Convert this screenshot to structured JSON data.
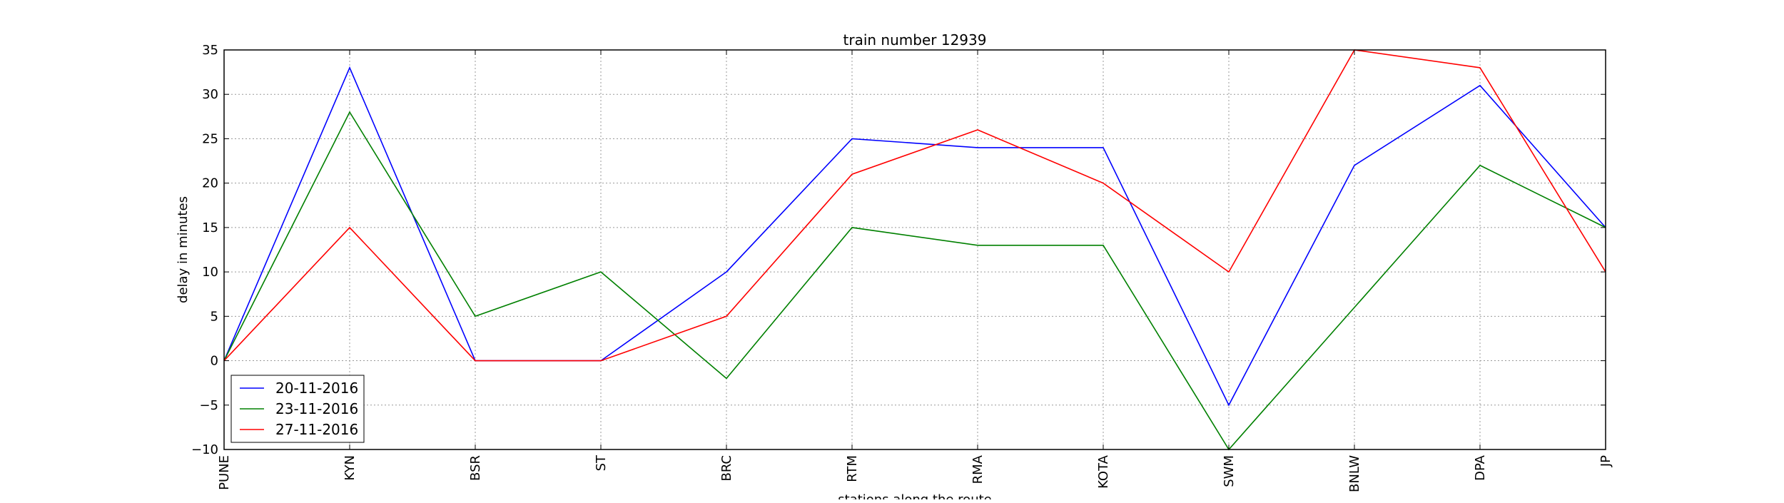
{
  "chart_data": {
    "type": "line",
    "title": "train number 12939",
    "xlabel": "stations along the route",
    "ylabel": "delay in minutes",
    "categories": [
      "PUNE",
      "KYN",
      "BSR",
      "ST",
      "BRC",
      "RTM",
      "RMA",
      "KOTA",
      "SWM",
      "BNLW",
      "DPA",
      "JP"
    ],
    "ylim": [
      -10,
      35
    ],
    "yticks": [
      -10,
      -5,
      0,
      5,
      10,
      15,
      20,
      25,
      30,
      35
    ],
    "ytick_labels": [
      "−10",
      "−5",
      "0",
      "5",
      "10",
      "15",
      "20",
      "25",
      "30",
      "35"
    ],
    "grid": true,
    "legend_position": "lower-left",
    "series": [
      {
        "name": "20-11-2016",
        "color": "#0000ff",
        "values": [
          0,
          33,
          0,
          0,
          10,
          25,
          24,
          24,
          -5,
          22,
          31,
          15
        ]
      },
      {
        "name": "23-11-2016",
        "color": "#008000",
        "values": [
          0,
          28,
          5,
          10,
          -2,
          15,
          13,
          13,
          -10,
          6,
          22,
          15
        ]
      },
      {
        "name": "27-11-2016",
        "color": "#ff0000",
        "values": [
          0,
          15,
          0,
          0,
          5,
          21,
          26,
          20,
          10,
          35,
          33,
          10
        ]
      }
    ]
  }
}
